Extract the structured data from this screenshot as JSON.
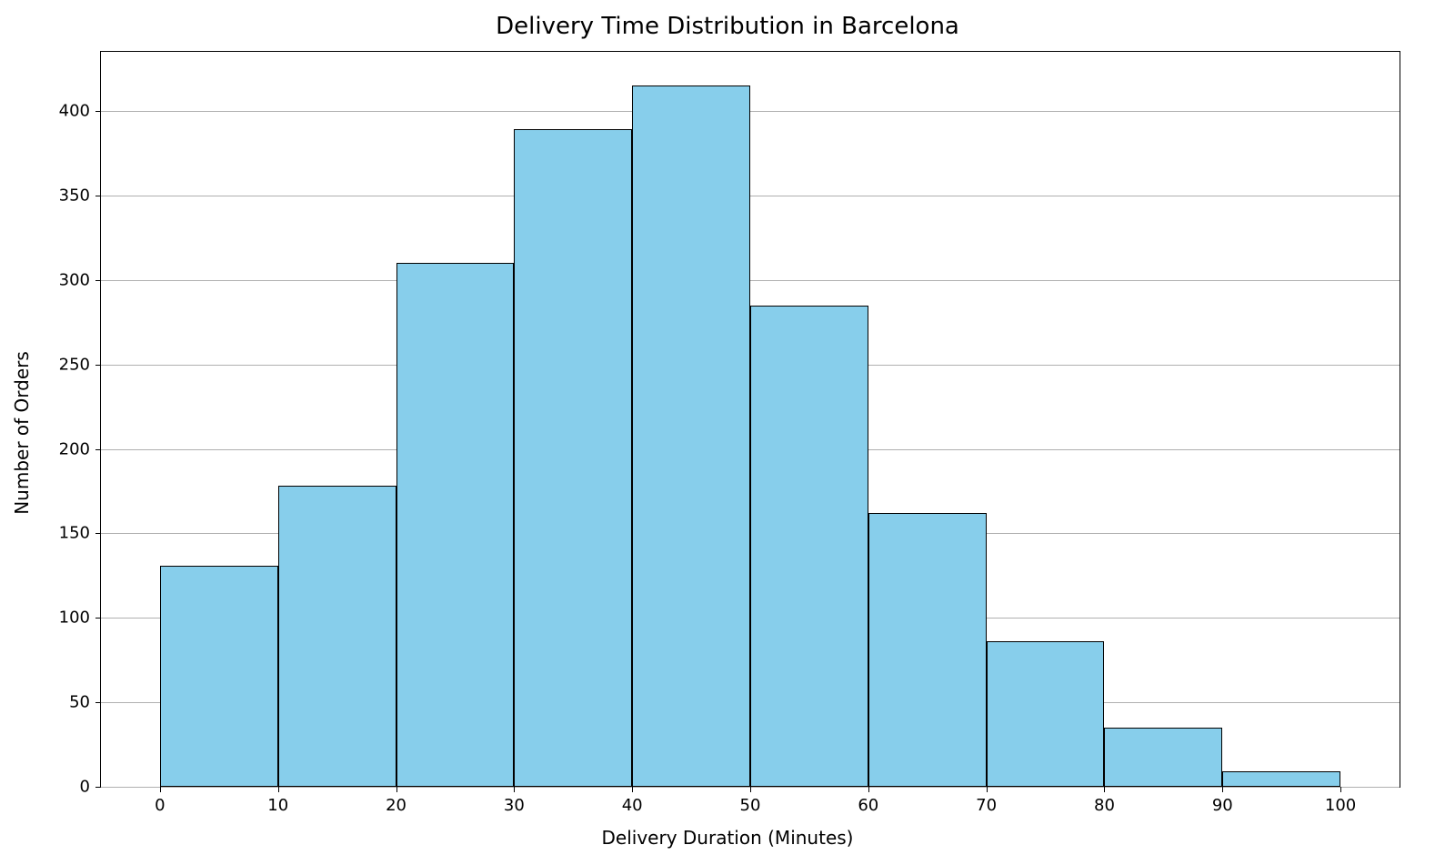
{
  "chart": {
    "type": "histogram",
    "title": "Delivery Time Distribution in Barcelona",
    "title_fontsize": 26,
    "xlabel": "Delivery Duration (Minutes)",
    "ylabel": "Number of Orders",
    "label_fontsize": 20,
    "tick_fontsize": 18,
    "background_color": "#ffffff",
    "axis_color": "#000000",
    "grid_color": "#b0b0b0",
    "bar_fill_color": "#87ceeb",
    "bar_edge_color": "#000000",
    "bar_edge_width": 1.5,
    "xlim": [
      -5,
      105
    ],
    "ylim": [
      0,
      435
    ],
    "xticks": [
      0,
      10,
      20,
      30,
      40,
      50,
      60,
      70,
      80,
      90,
      100
    ],
    "yticks": [
      0,
      50,
      100,
      150,
      200,
      250,
      300,
      350,
      400
    ],
    "grid_y": true,
    "grid_x": false,
    "bin_edges": [
      0,
      10,
      20,
      30,
      40,
      50,
      60,
      70,
      80,
      90,
      100
    ],
    "values": [
      131,
      178,
      310,
      389,
      415,
      285,
      162,
      86,
      35,
      9
    ]
  }
}
